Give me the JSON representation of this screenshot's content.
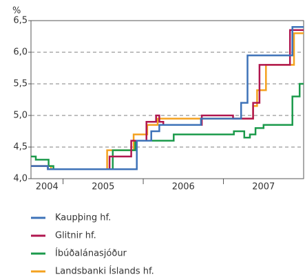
{
  "chart_data": {
    "type": "line",
    "y_unit": "%",
    "xlim": [
      2004.6,
      2008.0
    ],
    "xticks": [
      2005,
      2006,
      2007
    ],
    "xlabels": [
      2004,
      2005,
      2006,
      2007
    ],
    "ylim": [
      4.0,
      6.5
    ],
    "yticks": [
      {
        "value": 4.0,
        "label": "4,0"
      },
      {
        "value": 4.5,
        "label": "4,5"
      },
      {
        "value": 5.0,
        "label": "5,0"
      },
      {
        "value": 5.5,
        "label": "5,5"
      },
      {
        "value": 6.0,
        "label": "6,0"
      },
      {
        "value": 6.5,
        "label": "6,5"
      }
    ],
    "grid": true,
    "series": [
      {
        "name": "Kaupþing hf.",
        "color": "#3d72b8",
        "x": [
          2004.6,
          2004.81,
          2004.81,
          2005.92,
          2005.92,
          2006.1,
          2006.1,
          2006.2,
          2006.2,
          2006.72,
          2006.72,
          2007.22,
          2007.22,
          2007.3,
          2007.3,
          2007.86,
          2007.86,
          2008.0
        ],
        "values": [
          4.2,
          4.2,
          4.15,
          4.15,
          4.6,
          4.6,
          4.75,
          4.75,
          4.85,
          4.85,
          4.95,
          4.95,
          5.2,
          5.2,
          5.95,
          5.95,
          6.4,
          6.4
        ]
      },
      {
        "name": "Glitnir hf.",
        "color": "#b0164f",
        "x": [
          2004.6,
          2004.81,
          2004.81,
          2005.58,
          2005.58,
          2005.85,
          2005.85,
          2006.04,
          2006.04,
          2006.16,
          2006.16,
          2006.2,
          2006.2,
          2006.25,
          2006.25,
          2006.73,
          2006.73,
          2007.12,
          2007.12,
          2007.37,
          2007.37,
          2007.45,
          2007.45,
          2007.83,
          2007.83,
          2008.0
        ],
        "values": [
          4.2,
          4.2,
          4.15,
          4.15,
          4.35,
          4.35,
          4.6,
          4.6,
          4.9,
          4.9,
          5.0,
          5.0,
          4.9,
          4.9,
          4.85,
          4.85,
          5.0,
          5.0,
          4.95,
          4.95,
          5.2,
          5.2,
          5.8,
          5.8,
          6.35,
          6.35
        ]
      },
      {
        "name": "Íbúðalánasjóður",
        "color": "#1b9a4b",
        "x": [
          2004.6,
          2004.66,
          2004.66,
          2004.82,
          2004.82,
          2004.88,
          2004.88,
          2005.62,
          2005.62,
          2005.9,
          2005.9,
          2006.38,
          2006.38,
          2007.13,
          2007.13,
          2007.26,
          2007.26,
          2007.33,
          2007.33,
          2007.4,
          2007.4,
          2007.5,
          2007.5,
          2007.86,
          2007.86,
          2007.95,
          2007.95,
          2008.0
        ],
        "values": [
          4.35,
          4.35,
          4.3,
          4.3,
          4.2,
          4.2,
          4.15,
          4.15,
          4.45,
          4.45,
          4.6,
          4.6,
          4.7,
          4.7,
          4.75,
          4.75,
          4.65,
          4.65,
          4.7,
          4.7,
          4.8,
          4.8,
          4.85,
          4.85,
          5.3,
          5.3,
          5.5,
          5.5
        ]
      },
      {
        "name": "Landsbanki Íslands hf.",
        "color": "#f4a11f",
        "x": [
          2004.6,
          2004.85,
          2004.85,
          2005.55,
          2005.55,
          2005.88,
          2005.88,
          2006.05,
          2006.05,
          2006.18,
          2006.18,
          2007.37,
          2007.37,
          2007.42,
          2007.42,
          2007.53,
          2007.53,
          2007.88,
          2007.88,
          2008.0
        ],
        "values": [
          4.2,
          4.2,
          4.15,
          4.15,
          4.45,
          4.45,
          4.7,
          4.7,
          4.85,
          4.85,
          4.95,
          4.95,
          5.15,
          5.15,
          5.4,
          5.4,
          5.8,
          5.8,
          6.3,
          6.3
        ]
      }
    ]
  }
}
